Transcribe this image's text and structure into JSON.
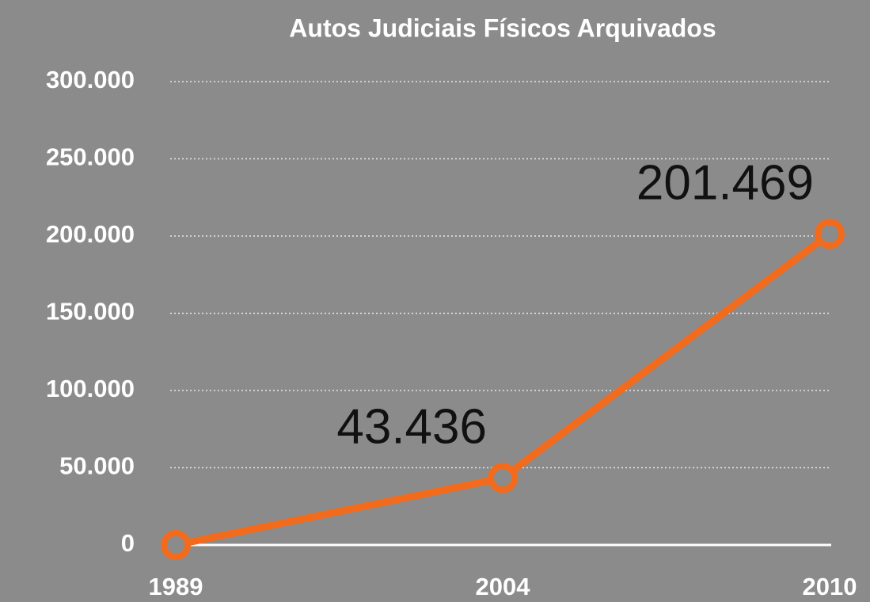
{
  "chart_data": {
    "type": "line",
    "title": "Autos Judiciais Físicos Arquivados",
    "categories": [
      "1989",
      "2004",
      "2010"
    ],
    "series": [
      {
        "name": null,
        "color": "#f26b1d",
        "values": [
          0,
          43436,
          201469
        ],
        "value_labels": [
          null,
          "43.436",
          "201.469"
        ]
      }
    ],
    "ylim": [
      0,
      300000
    ],
    "yticks": [
      0,
      {
        "value": 50000,
        "label": "50.000"
      },
      {
        "value": 100000,
        "label": "100.000"
      },
      {
        "value": 150000,
        "label": "150.000"
      },
      {
        "value": 200000,
        "label": "200.000"
      },
      {
        "value": 250000,
        "label": "250.000"
      },
      {
        "value": 300000,
        "label": "300.000"
      }
    ],
    "grid": true
  }
}
